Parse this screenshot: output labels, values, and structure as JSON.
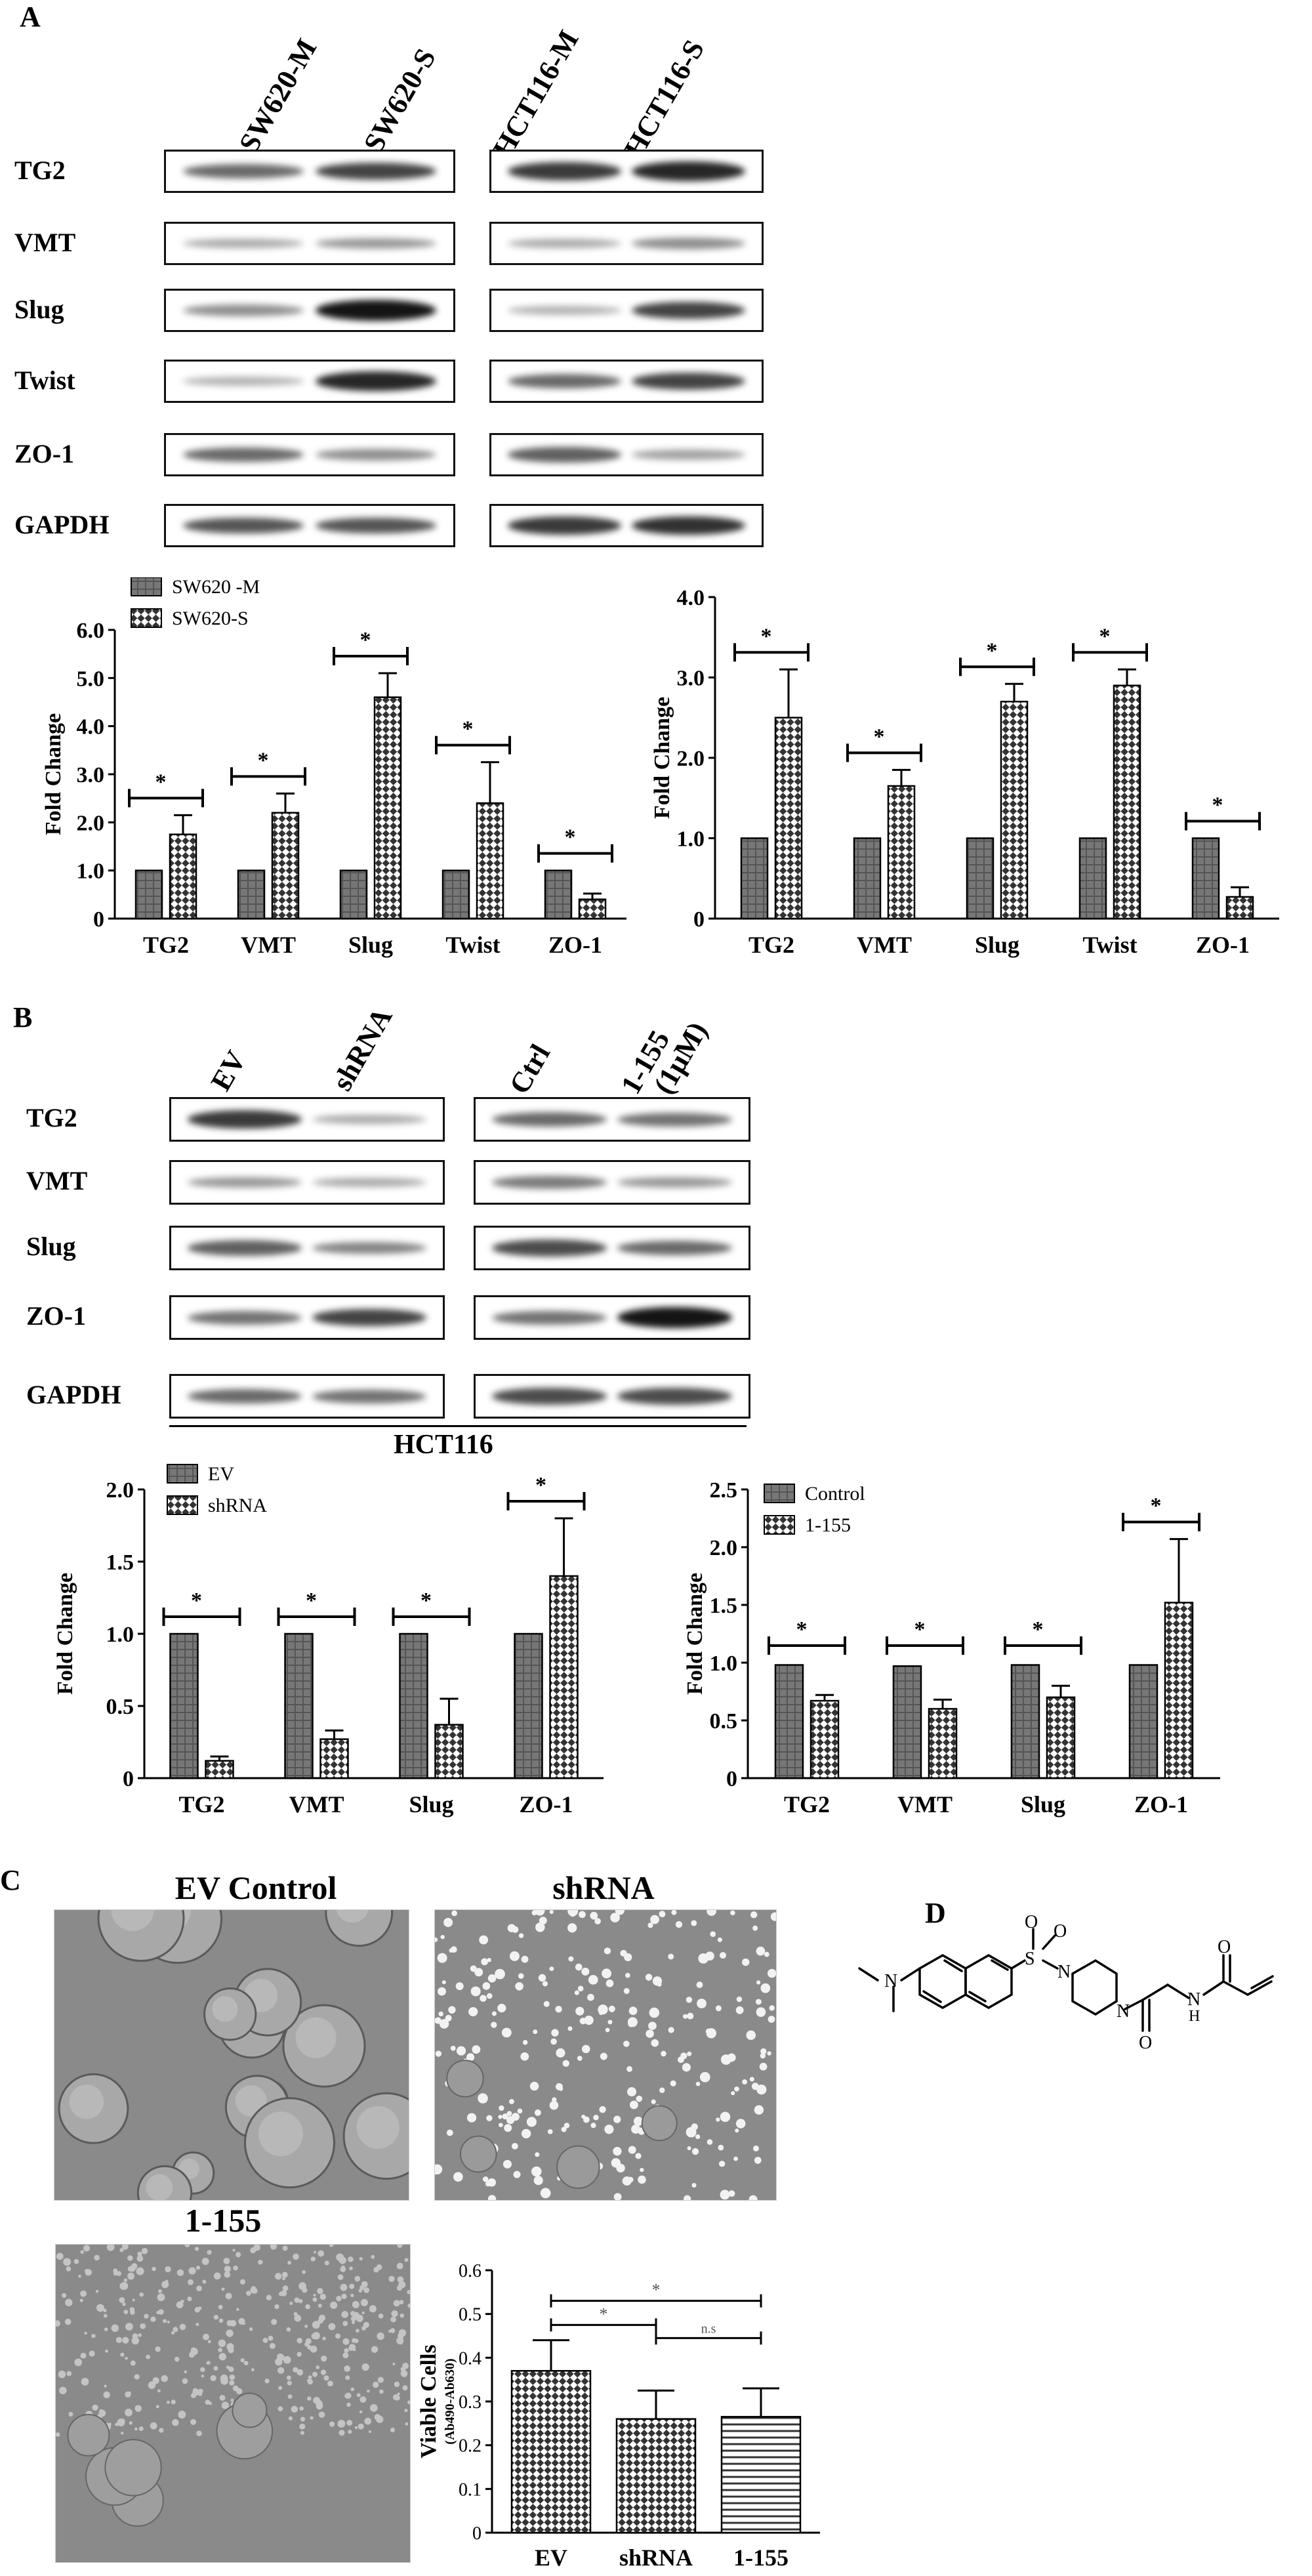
{
  "panel_A": {
    "letter": "A",
    "lanes_left": [
      "SW620-M",
      "SW620-S"
    ],
    "lanes_right": [
      "HCT116-M",
      "HCT116-S"
    ],
    "rows": [
      "TG2",
      "VMT",
      "Slug",
      "Twist",
      "ZO-1",
      "GAPDH"
    ]
  },
  "panel_B": {
    "letter": "B",
    "lanes_left": [
      "EV",
      "shRNA"
    ],
    "lanes_right": [
      "Ctrl",
      "1-155",
      "(1μM)"
    ],
    "rows": [
      "TG2",
      "VMT",
      "Slug",
      "ZO-1",
      "GAPDH"
    ],
    "cell_line": "HCT116"
  },
  "panel_C": {
    "letter": "C",
    "images": [
      "EV Control",
      "shRNA",
      "1-155"
    ]
  },
  "panel_D": {
    "letter": "D"
  },
  "chart_data": [
    {
      "type": "bar",
      "id": "A-left",
      "categories": [
        "TG2",
        "VMT",
        "Slug",
        "Twist",
        "ZO-1"
      ],
      "series": [
        {
          "name": "SW620 -M",
          "values": [
            1,
            1,
            1,
            1,
            1
          ],
          "errors": [
            0,
            0,
            0,
            0,
            0
          ]
        },
        {
          "name": "SW620-S",
          "values": [
            1.75,
            2.2,
            4.6,
            2.4,
            0.4
          ],
          "errors": [
            0.4,
            0.4,
            0.5,
            0.85,
            0.12
          ]
        }
      ],
      "ylabel": "Fold Change",
      "ylim": [
        0,
        6
      ],
      "yticks": [
        "0",
        "1.0",
        "2.0",
        "3.0",
        "4.0",
        "5.0",
        "6.0"
      ],
      "legend": "top-left",
      "significance": [
        "*",
        "*",
        "*",
        "*",
        "*"
      ]
    },
    {
      "type": "bar",
      "id": "A-right",
      "categories": [
        "TG2",
        "VMT",
        "Slug",
        "Twist",
        "ZO-1"
      ],
      "series": [
        {
          "values": [
            1,
            1,
            1,
            1,
            1
          ],
          "errors": [
            0,
            0,
            0,
            0,
            0
          ]
        },
        {
          "values": [
            2.5,
            1.65,
            2.7,
            2.9,
            0.27
          ],
          "errors": [
            0.6,
            0.2,
            0.22,
            0.2,
            0.12
          ]
        }
      ],
      "ylabel": "Fold Change",
      "ylim": [
        0,
        4
      ],
      "yticks": [
        "0",
        "1.0",
        "2.0",
        "3.0",
        "4.0"
      ],
      "significance": [
        "*",
        "*",
        "*",
        "*",
        "*"
      ]
    },
    {
      "type": "bar",
      "id": "B-left",
      "categories": [
        "TG2",
        "VMT",
        "Slug",
        "ZO-1"
      ],
      "series": [
        {
          "name": "EV",
          "values": [
            1,
            1,
            1,
            1
          ],
          "errors": [
            0,
            0,
            0,
            0
          ]
        },
        {
          "name": "shRNA",
          "values": [
            0.12,
            0.27,
            0.37,
            1.4
          ],
          "errors": [
            0.03,
            0.06,
            0.18,
            0.4
          ]
        }
      ],
      "ylabel": "Fold Change",
      "ylim": [
        0,
        2
      ],
      "yticks": [
        "0",
        "0.5",
        "1.0",
        "1.5",
        "2.0"
      ],
      "legend": "top-left",
      "significance": [
        "*",
        "*",
        "*",
        "*"
      ]
    },
    {
      "type": "bar",
      "id": "B-right",
      "categories": [
        "TG2",
        "VMT",
        "Slug",
        "ZO-1"
      ],
      "series": [
        {
          "name": "Control",
          "values": [
            0.98,
            0.97,
            0.98,
            0.98
          ],
          "errors": [
            0,
            0,
            0,
            0
          ]
        },
        {
          "name": "1-155",
          "values": [
            0.67,
            0.6,
            0.7,
            1.52
          ],
          "errors": [
            0.05,
            0.08,
            0.1,
            0.55
          ]
        }
      ],
      "ylabel": "Fold Change",
      "ylim": [
        0,
        2.5
      ],
      "yticks": [
        "0",
        "0.5",
        "1.0",
        "1.5",
        "2.0",
        "2.5"
      ],
      "legend": "top-left",
      "significance": [
        "*",
        "*",
        "*",
        "*"
      ]
    },
    {
      "type": "bar",
      "id": "C-viability",
      "categories": [
        "EV",
        "shRNA",
        "1-155"
      ],
      "values": [
        0.37,
        0.26,
        0.265
      ],
      "errors": [
        0.07,
        0.065,
        0.065
      ],
      "ylabel": "Viable Cells",
      "ylabel2": "(Ab490-Ab630)",
      "ylim": [
        0,
        0.6
      ],
      "yticks": [
        "0",
        "0.1",
        "0.2",
        "0.3",
        "0.4",
        "0.5",
        "0.6"
      ],
      "comparisons": [
        {
          "from": "EV",
          "to": "1-155",
          "label": "*"
        },
        {
          "from": "EV",
          "to": "shRNA",
          "label": "*"
        },
        {
          "from": "shRNA",
          "to": "1-155",
          "label": "n.s"
        }
      ]
    }
  ]
}
